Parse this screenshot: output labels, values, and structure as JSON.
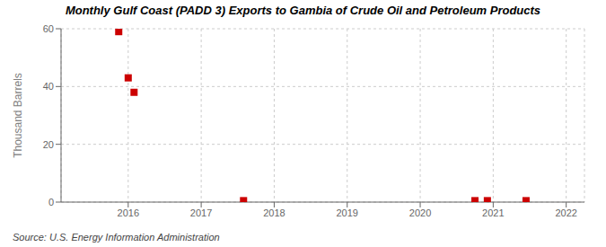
{
  "chart_data": {
    "type": "scatter",
    "title": "Monthly Gulf Coast (PADD 3) Exports to Gambia of Crude Oil and Petroleum Products",
    "y_label": "Thousand Barrels",
    "annotations": [
      "Source: U.S. Energy Information Administration"
    ],
    "x": [
      2015.87,
      2016.0,
      2016.08,
      2017.58,
      2020.75,
      2020.92,
      2021.45
    ],
    "values": [
      59,
      43,
      38,
      0.5,
      0.5,
      0.5,
      0.5
    ],
    "color": "#cc0000",
    "marker": "square",
    "xlim": [
      2015.08,
      2022.25
    ],
    "xticks": [
      2016,
      2017,
      2018,
      2019,
      2020,
      2021,
      2022
    ],
    "ylim": [
      0,
      60
    ],
    "yticks": [
      0,
      20,
      40,
      60
    ],
    "grid": true
  }
}
